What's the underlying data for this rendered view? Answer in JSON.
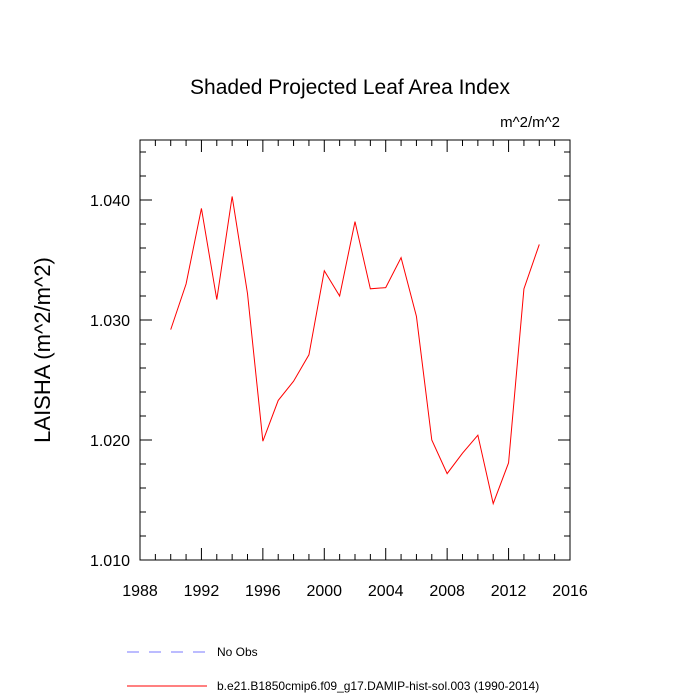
{
  "chart_data": {
    "type": "line",
    "title": "Shaded Projected Leaf Area Index",
    "units_label": "m^2/m^2",
    "ylabel": "LAISHA  (m^2/m^2)",
    "xlabel": "",
    "xlim": [
      1988,
      2016
    ],
    "ylim": [
      1.01,
      1.045
    ],
    "x_ticks": [
      1988,
      1992,
      1996,
      2000,
      2004,
      2008,
      2012,
      2016
    ],
    "x_tick_labels": [
      "1988",
      "1992",
      "1996",
      "2000",
      "2004",
      "2008",
      "2012",
      "2016"
    ],
    "y_ticks": [
      1.01,
      1.02,
      1.03,
      1.04
    ],
    "y_tick_labels": [
      "1.010",
      "1.020",
      "1.030",
      "1.040"
    ],
    "series": [
      {
        "name": "b.e21.B1850cmip6.f09_g17.DAMIP-hist-sol.003 (1990-2014)",
        "color": "#ff0000",
        "style": "solid",
        "x": [
          1990,
          1991,
          1992,
          1993,
          1994,
          1995,
          1996,
          1997,
          1998,
          1999,
          2000,
          2001,
          2002,
          2003,
          2004,
          2005,
          2006,
          2007,
          2008,
          2009,
          2010,
          2011,
          2012,
          2013,
          2014
        ],
        "y": [
          1.0292,
          1.033,
          1.0393,
          1.0317,
          1.0403,
          1.0322,
          1.0199,
          1.0233,
          1.0249,
          1.0271,
          1.0341,
          1.032,
          1.0382,
          1.0326,
          1.0327,
          1.0352,
          1.0303,
          1.02,
          1.0172,
          1.0189,
          1.0204,
          1.0147,
          1.0181,
          1.0326,
          1.0363
        ]
      }
    ],
    "legend": [
      {
        "label": "No Obs",
        "color": "#7a7aff",
        "style": "dashed"
      },
      {
        "label": "b.e21.B1850cmip6.f09_g17.DAMIP-hist-sol.003 (1990-2014)",
        "color": "#ff0000",
        "style": "solid"
      }
    ],
    "legend_position": "bottom",
    "grid": false
  }
}
